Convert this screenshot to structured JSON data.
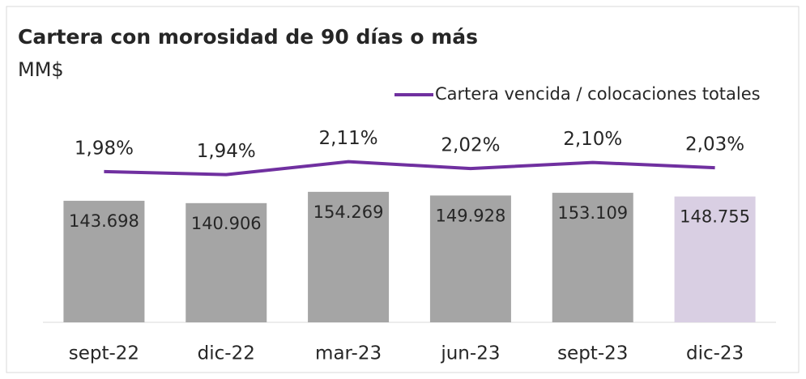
{
  "chart_data": {
    "type": "bar",
    "title": "Cartera con morosidad de 90 días o más",
    "subtitle": "MM$",
    "categories": [
      "sept-22",
      "dic-22",
      "mar-23",
      "jun-23",
      "sept-23",
      "dic-23"
    ],
    "values": [
      143698,
      140906,
      154269,
      149928,
      153109,
      148755
    ],
    "value_labels": [
      "143.698",
      "140.906",
      "154.269",
      "149.928",
      "153.109",
      "148.755"
    ],
    "colors": [
      "#a5a5a5",
      "#a5a5a5",
      "#a5a5a5",
      "#a5a5a5",
      "#a5a5a5",
      "#d9cfe3"
    ],
    "ylim": [
      0,
      225000
    ],
    "y2lim": [
      0,
      2.5
    ],
    "series": [
      {
        "name": "Cartera vencida / colocaciones totales",
        "color": "#7030a0",
        "axis": "y2",
        "values": [
          1.98,
          1.94,
          2.11,
          2.02,
          2.1,
          2.03
        ],
        "value_labels": [
          "1,98%",
          "1,94%",
          "2,11%",
          "2,02%",
          "2,10%",
          "2,03%"
        ]
      }
    ],
    "legend": "top-right"
  }
}
